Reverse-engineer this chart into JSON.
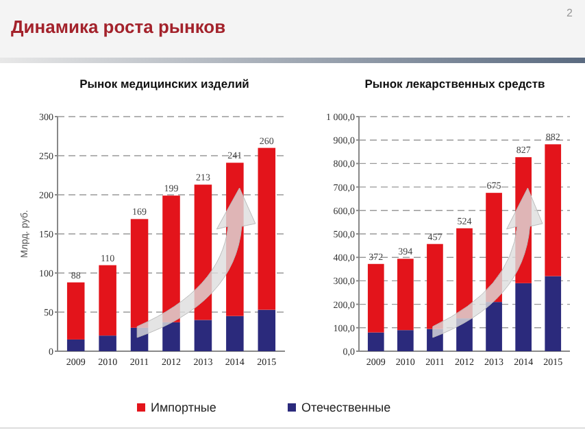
{
  "chart_data": [
    {
      "type": "bar",
      "title": "Динамика роста рынков",
      "subtitle": "Рынок медицинских изделий",
      "ylabel": "Млрд. руб.",
      "annotations": [
        "2"
      ],
      "categories": [
        "2009",
        "2010",
        "2011",
        "2012",
        "2013",
        "2014",
        "2015"
      ],
      "stacked": true,
      "series": [
        {
          "name": "Отечественные",
          "color": "#2b2a7c",
          "values": [
            15,
            20,
            30,
            37,
            40,
            45,
            53
          ]
        },
        {
          "name": "Импортные",
          "color": "#e3141b",
          "values": [
            73,
            90,
            139,
            162,
            173,
            196,
            207
          ]
        }
      ],
      "totals": [
        "88",
        "110",
        "169",
        "199",
        "213",
        "241",
        "260"
      ],
      "ylim": [
        0,
        300
      ],
      "yticks": [
        0,
        50,
        100,
        150,
        200,
        250,
        300
      ],
      "grid": "y",
      "legend": "bottom"
    },
    {
      "type": "bar",
      "title": "Рынок лекарственных средств",
      "categories": [
        "2009",
        "2010",
        "2011",
        "2012",
        "2013",
        "2014",
        "2015"
      ],
      "stacked": true,
      "series": [
        {
          "color": "#2b2a7c",
          "values": [
            80,
            90,
            95,
            140,
            210,
            290,
            320
          ]
        },
        {
          "color": "#e3141b",
          "values": [
            292,
            304,
            362,
            384,
            465,
            537,
            562
          ]
        }
      ],
      "totals": [
        "372",
        "394",
        "457",
        "524",
        "675",
        "827",
        "882"
      ],
      "ylim": [
        0,
        1000
      ],
      "yticks": [
        {
          "value": 0,
          "label": "0,0"
        },
        {
          "value": 100,
          "label": "100,0"
        },
        {
          "value": 200,
          "label": "200,0"
        },
        {
          "value": 300,
          "label": "300,0"
        },
        {
          "value": 400,
          "label": "400,0"
        },
        {
          "value": 500,
          "label": "500,0"
        },
        {
          "value": 600,
          "label": "600,0"
        },
        {
          "value": 700,
          "label": "700,0"
        },
        {
          "value": 800,
          "label": "800,0"
        },
        {
          "value": 900,
          "label": "900,0"
        },
        {
          "value": 1000,
          "label": "1 000,0"
        }
      ],
      "grid": "y"
    }
  ]
}
